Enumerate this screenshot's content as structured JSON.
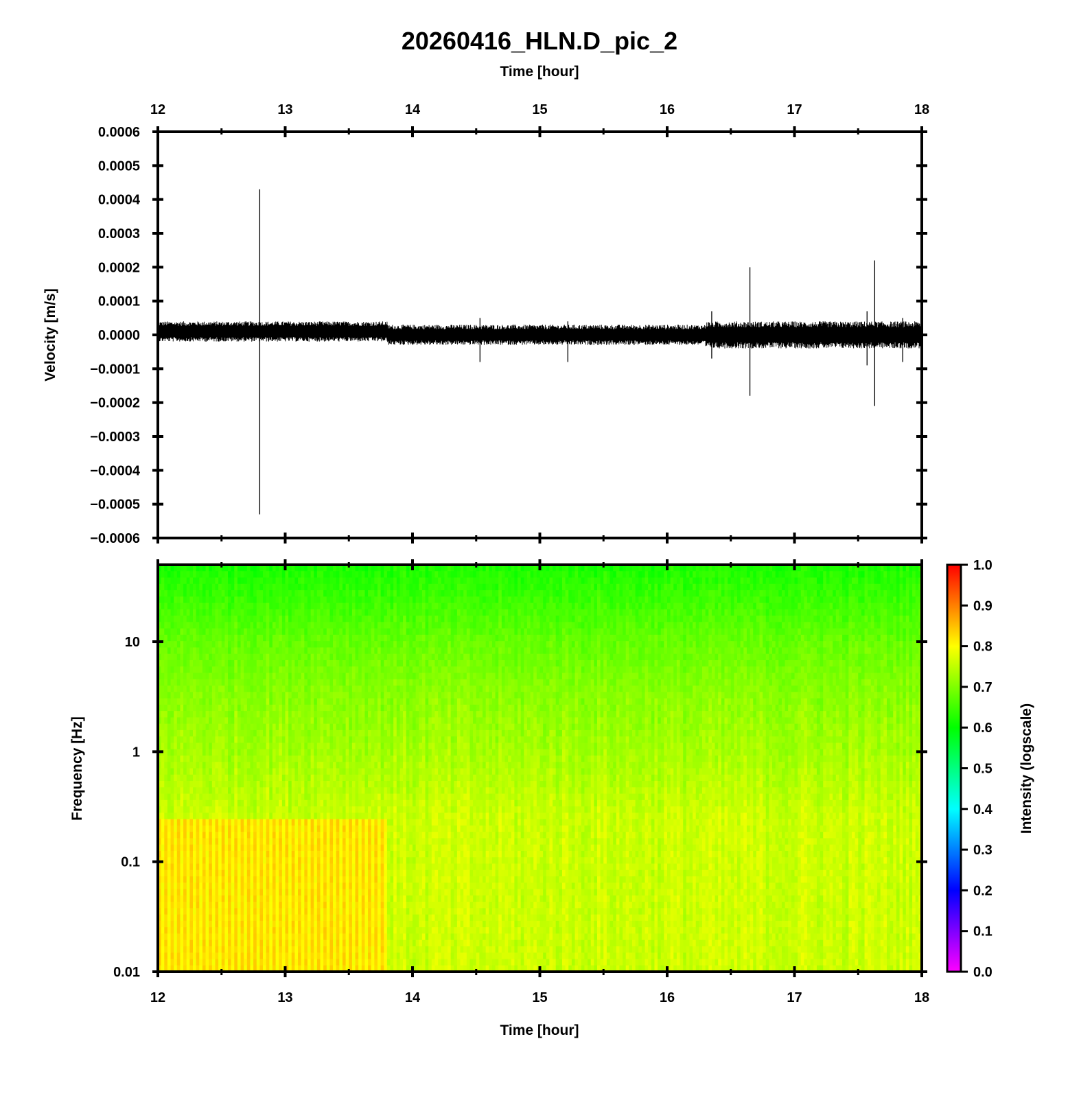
{
  "chart_data": [
    {
      "type": "line",
      "title": "20260416_HLN.D_pic_2",
      "xlabel": "Time [hour]",
      "ylabel": "Velocity [m/s]",
      "xlim": [
        12,
        18
      ],
      "ylim": [
        -0.0006,
        0.0006
      ],
      "x_ticks": [
        "12",
        "13",
        "14",
        "15",
        "16",
        "17",
        "18"
      ],
      "y_ticks": [
        "0.0006",
        "0.0005",
        "0.0004",
        "0.0003",
        "0.0002",
        "0.0001",
        "0.0000",
        "−0.0001",
        "−0.0002",
        "−0.0003",
        "−0.0004",
        "−0.0005",
        "−0.0006"
      ],
      "grid": false,
      "series": [
        {
          "color": "#000000",
          "segments": [
            {
              "x_start": 12.0,
              "x_end": 13.8,
              "center": 1e-05,
              "upper": 4e-05,
              "lower": -2e-05
            },
            {
              "x_start": 13.8,
              "x_end": 16.3,
              "center": 0.0,
              "upper": 3e-05,
              "lower": -3e-05
            },
            {
              "x_start": 16.3,
              "x_end": 18.0,
              "center": 0.0,
              "upper": 4e-05,
              "lower": -4e-05
            }
          ],
          "spikes": [
            {
              "x": 12.8,
              "max": 0.00043,
              "min": -0.00053
            },
            {
              "x": 16.65,
              "max": 0.0002,
              "min": -0.00018
            },
            {
              "x": 17.63,
              "max": 0.00022,
              "min": -0.00021
            },
            {
              "x": 14.53,
              "max": 5e-05,
              "min": -8e-05
            },
            {
              "x": 15.22,
              "max": 4e-05,
              "min": -8e-05
            },
            {
              "x": 16.35,
              "max": 7e-05,
              "min": -7e-05
            },
            {
              "x": 17.57,
              "max": 7e-05,
              "min": -9e-05
            },
            {
              "x": 17.85,
              "max": 5e-05,
              "min": -8e-05
            }
          ]
        }
      ]
    },
    {
      "type": "heatmap",
      "xlabel": "Time [hour]",
      "ylabel": "Frequency [Hz]",
      "xlim": [
        12,
        18
      ],
      "ylim": [
        0.01,
        50
      ],
      "y_scale": "log",
      "x_ticks": [
        "12",
        "13",
        "14",
        "15",
        "16",
        "17",
        "18"
      ],
      "y_ticks": [
        {
          "value": 10,
          "label": "10"
        },
        {
          "value": 1,
          "label": "1"
        },
        {
          "value": 0.1,
          "label": "0.1"
        },
        {
          "value": 0.01,
          "label": "0.01"
        }
      ],
      "colorbar": {
        "label": "Intensity (logscale)",
        "range": [
          0.0,
          1.0
        ],
        "ticks": [
          "1.0",
          "0.9",
          "0.8",
          "0.7",
          "0.6",
          "0.5",
          "0.4",
          "0.3",
          "0.2",
          "0.1",
          "0.0"
        ],
        "colors": [
          "#ff00ff",
          "#0000ff",
          "#00ffff",
          "#00ff00",
          "#ffff00",
          "#ff0000"
        ]
      },
      "intensity_profile": [
        {
          "freq": 50,
          "value": 0.62
        },
        {
          "freq": 10,
          "value": 0.68
        },
        {
          "freq": 3,
          "value": 0.71
        },
        {
          "freq": 1,
          "value": 0.73
        },
        {
          "freq": 0.25,
          "value": 0.76
        },
        {
          "freq": 0.01,
          "value": 0.76
        }
      ],
      "high_intensity_region": {
        "time_start": 12.0,
        "time_end": 13.8,
        "freq_max": 0.25,
        "value": 0.82
      }
    }
  ]
}
